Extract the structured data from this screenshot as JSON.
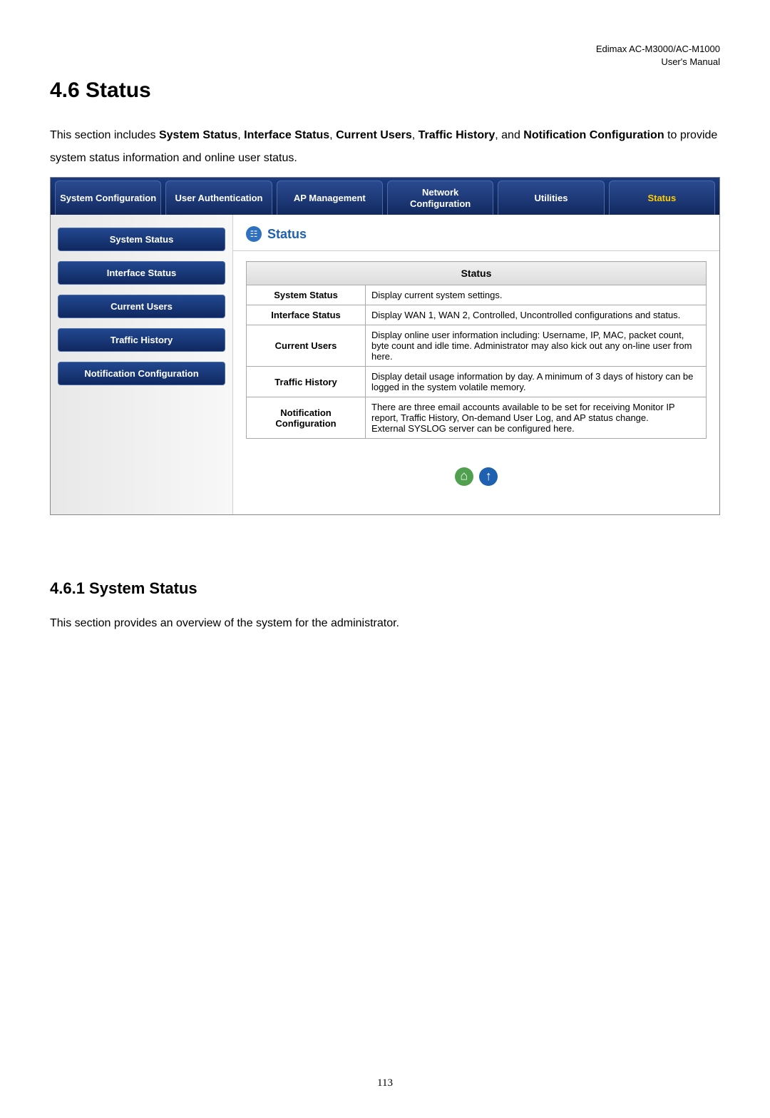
{
  "header": {
    "product": "Edimax  AC-M3000/AC-M1000",
    "doc": "User's  Manual"
  },
  "section": {
    "heading": "4.6 Status",
    "intro_pre": "This section includes ",
    "bold1": "System Status",
    "sep1": ", ",
    "bold2": "Interface Status",
    "sep2": ", ",
    "bold3": "Current Users",
    "sep3": ", ",
    "bold4": "Traffic History",
    "sep4": ", and ",
    "bold5": "Notification Configuration",
    "intro_post": " to provide system status information and online user status."
  },
  "tabs": {
    "items": [
      "System Configuration",
      "User Authentication",
      "AP Management",
      "Network Configuration",
      "Utilities",
      "Status"
    ],
    "active_index": 5
  },
  "sidebar": {
    "items": [
      "System Status",
      "Interface Status",
      "Current Users",
      "Traffic History",
      "Notification Configuration"
    ]
  },
  "panel": {
    "title": "Status",
    "table_header": "Status",
    "rows": [
      {
        "name": "System Status",
        "desc": "Display current system settings."
      },
      {
        "name": "Interface Status",
        "desc": "Display WAN 1, WAN 2, Controlled, Uncontrolled configurations and status."
      },
      {
        "name": "Current Users",
        "desc": "Display online user information including: Username, IP, MAC, packet count, byte count and idle time. Administrator may also kick out any on-line user from here."
      },
      {
        "name": "Traffic History",
        "desc": "Display detail usage information by day. A minimum of 3 days of history can be logged in the system volatile memory."
      },
      {
        "name": "Notification Configuration",
        "desc": "There are three email accounts available to be set for receiving Monitor IP report, Traffic History, On-demand User Log, and AP status change.\nExternal SYSLOG server can be configured here."
      }
    ]
  },
  "subsection": {
    "heading": "4.6.1 System Status",
    "text": "This section provides an overview of the system for the administrator."
  },
  "page_number": "113",
  "colors": {
    "tab_bg_top": "#2a4a90",
    "tab_bg_bottom": "#122a60",
    "tab_active_text": "#ffcc00",
    "panel_title_color": "#2060b0",
    "icon_home": "#50a050",
    "icon_up": "#2060b0"
  }
}
